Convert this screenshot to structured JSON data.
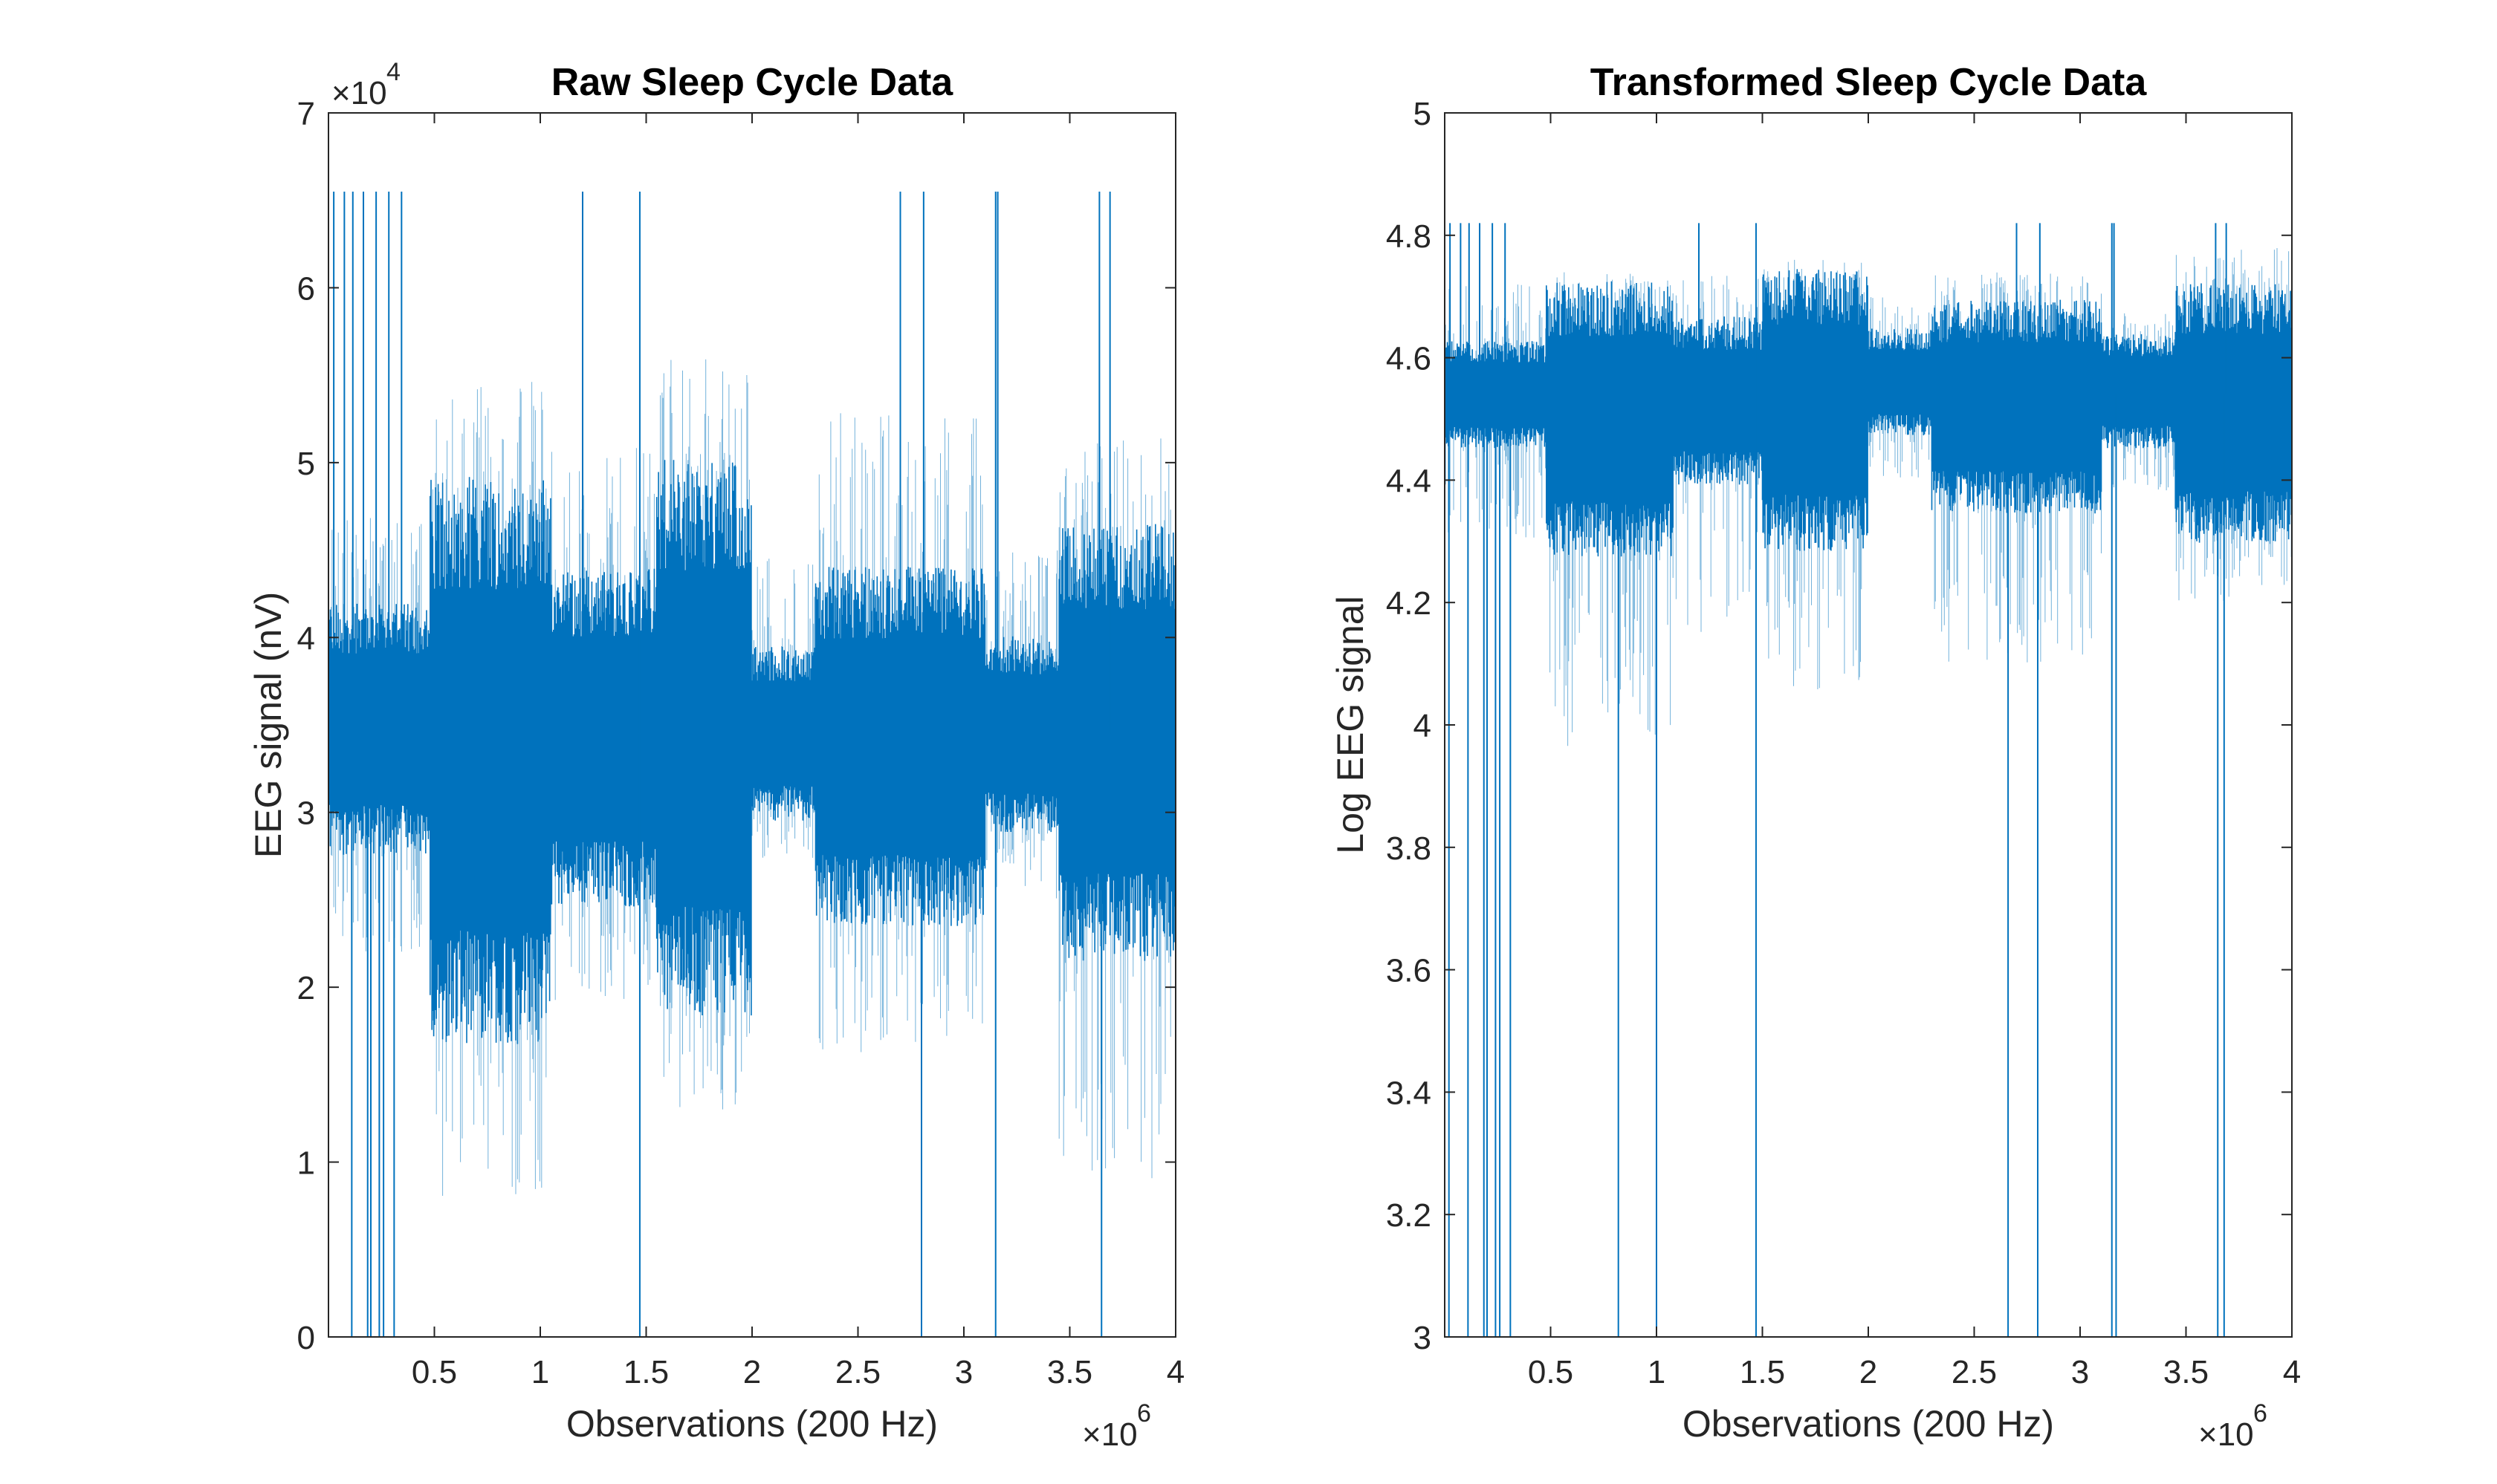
{
  "chart_data": [
    {
      "type": "line",
      "title": "Raw Sleep Cycle Data",
      "xlabel": "Observations (200 Hz)",
      "ylabel": "EEG signal (nV)",
      "xlim": [
        1,
        4000000
      ],
      "ylim": [
        0,
        70000
      ],
      "x_ticks": [
        "0.5",
        "1",
        "1.5",
        "2",
        "2.5",
        "3",
        "3.5",
        "4"
      ],
      "x_tick_values": [
        500000,
        1000000,
        1500000,
        2000000,
        2500000,
        3000000,
        3500000,
        4000000
      ],
      "x_multiplier": "×10",
      "x_multiplier_exp": "6",
      "y_ticks": [
        "0",
        "1",
        "2",
        "3",
        "4",
        "5",
        "6",
        "7"
      ],
      "y_tick_values": [
        0,
        10000,
        20000,
        30000,
        40000,
        50000,
        60000,
        70000
      ],
      "y_multiplier": "×10",
      "y_multiplier_exp": "4",
      "series": [
        {
          "color": "#0072BD",
          "baseline": 34500,
          "segments": [
            {
              "x": [
                0,
                480000
              ],
              "low": 29000,
              "high": 40500,
              "min": 22000,
              "max": 47000
            },
            {
              "x": [
                480000,
                1050000
              ],
              "low": 20000,
              "high": 46000,
              "min": 8000,
              "max": 55000
            },
            {
              "x": [
                1050000,
                1550000
              ],
              "low": 26500,
              "high": 42000,
              "min": 19000,
              "max": 51000
            },
            {
              "x": [
                1550000,
                2000000
              ],
              "low": 21500,
              "high": 47000,
              "min": 13000,
              "max": 56000
            },
            {
              "x": [
                2000000,
                2300000
              ],
              "low": 30500,
              "high": 38500,
              "min": 27000,
              "max": 45000
            },
            {
              "x": [
                2300000,
                3100000
              ],
              "low": 25500,
              "high": 42000,
              "min": 16000,
              "max": 53000
            },
            {
              "x": [
                3100000,
                3450000
              ],
              "low": 30000,
              "high": 39000,
              "min": 25000,
              "max": 45000
            },
            {
              "x": [
                3450000,
                4000000
              ],
              "low": 24000,
              "high": 44000,
              "min": 9000,
              "max": 52000
            }
          ],
          "spikes_up": [
            25000,
            75000,
            115000,
            165000,
            225000,
            285000,
            345000,
            1200000,
            1470000,
            2700000,
            2810000,
            3150000,
            3160000,
            3640000,
            3690000
          ],
          "spikes_up_value": 65500,
          "spikes_down": [
            110000,
            185000,
            200000,
            240000,
            260000,
            310000,
            1470000,
            2800000,
            3150000,
            3650000
          ],
          "spikes_down_value": 0
        }
      ]
    },
    {
      "type": "line",
      "title": "Transformed Sleep Cycle Data",
      "xlabel": "Observations (200 Hz)",
      "ylabel": "Log EEG signal",
      "xlim": [
        1,
        4000000
      ],
      "ylim": [
        3,
        5
      ],
      "x_ticks": [
        "0.5",
        "1",
        "1.5",
        "2",
        "2.5",
        "3",
        "3.5",
        "4"
      ],
      "x_tick_values": [
        500000,
        1000000,
        1500000,
        2000000,
        2500000,
        3000000,
        3500000,
        4000000
      ],
      "x_multiplier": "×10",
      "x_multiplier_exp": "6",
      "y_ticks": [
        "3",
        "3.2",
        "3.4",
        "3.6",
        "3.8",
        "4",
        "4.2",
        "4.4",
        "4.6",
        "4.8",
        "5"
      ],
      "y_tick_values": [
        3,
        3.2,
        3.4,
        3.6,
        3.8,
        4,
        4.2,
        4.4,
        4.6,
        4.8,
        5
      ],
      "series": [
        {
          "color": "#0072BD",
          "baseline": 4.54,
          "segments": [
            {
              "x": [
                0,
                480000
              ],
              "low": 4.47,
              "high": 4.61,
              "min": 4.3,
              "max": 4.72
            },
            {
              "x": [
                480000,
                1080000
              ],
              "low": 4.32,
              "high": 4.68,
              "min": 3.95,
              "max": 4.74
            },
            {
              "x": [
                1080000,
                1500000
              ],
              "low": 4.42,
              "high": 4.64,
              "min": 4.15,
              "max": 4.74
            },
            {
              "x": [
                1500000,
                2000000
              ],
              "low": 4.33,
              "high": 4.7,
              "min": 4.05,
              "max": 4.76
            },
            {
              "x": [
                2000000,
                2300000
              ],
              "low": 4.49,
              "high": 4.63,
              "min": 4.4,
              "max": 4.7
            },
            {
              "x": [
                2300000,
                3100000
              ],
              "low": 4.38,
              "high": 4.66,
              "min": 4.1,
              "max": 4.74
            },
            {
              "x": [
                3100000,
                3450000
              ],
              "low": 4.47,
              "high": 4.62,
              "min": 4.38,
              "max": 4.68
            },
            {
              "x": [
                3450000,
                4000000
              ],
              "low": 4.34,
              "high": 4.68,
              "min": 4.2,
              "max": 4.78
            }
          ],
          "spikes_up": [
            25000,
            75000,
            115000,
            165000,
            225000,
            285000,
            1200000,
            1470000,
            2700000,
            2810000,
            3150000,
            3160000,
            3640000,
            3690000
          ],
          "spikes_up_value": 4.82,
          "spikes_down": [
            20000,
            110000,
            185000,
            200000,
            240000,
            260000,
            310000,
            820000,
            1000000,
            1470000,
            2660000,
            2800000,
            3150000,
            3170000,
            3650000,
            3680000
          ],
          "spikes_down_value": 3.0
        }
      ]
    }
  ]
}
